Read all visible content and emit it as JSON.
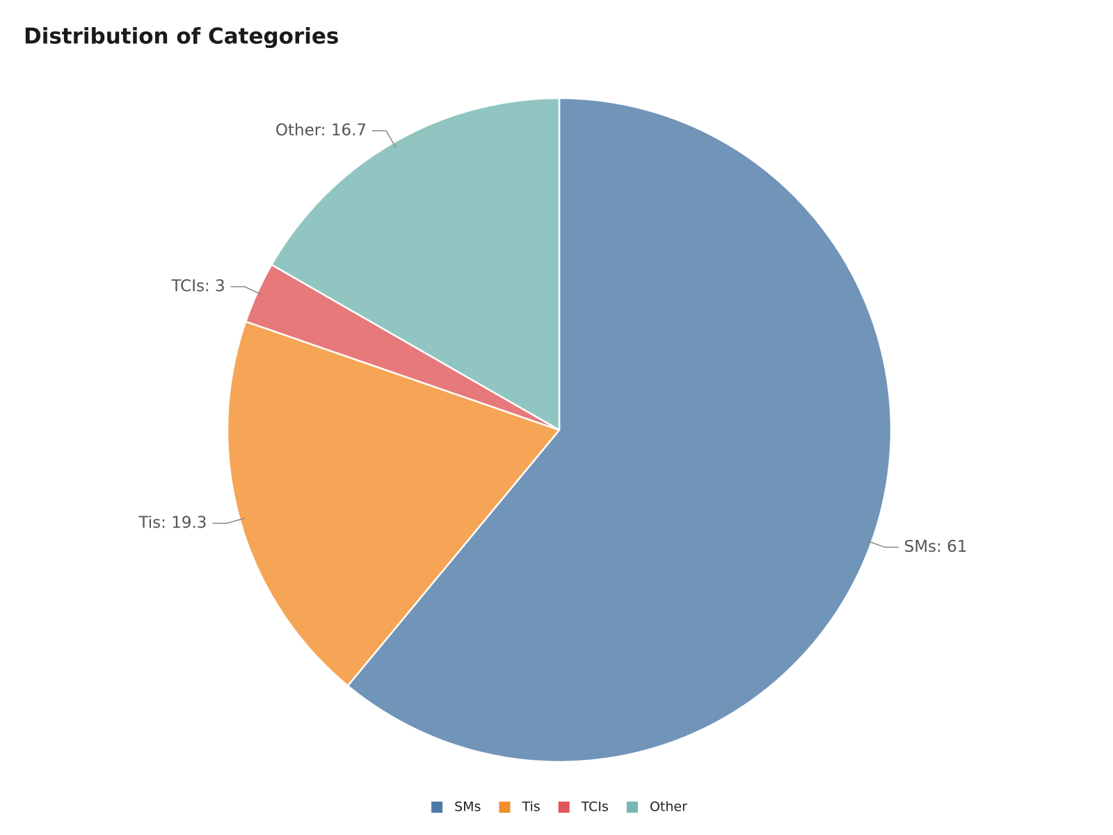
{
  "chart_data": {
    "type": "pie",
    "title": "Distribution of Categories",
    "categories": [
      "SMs",
      "Tis",
      "TCIs",
      "Other"
    ],
    "values": [
      61,
      19.3,
      3,
      16.7
    ],
    "value_labels": [
      "SMs: 61",
      "Tis: 19.3",
      "TCIs: 3",
      "Other: 16.7"
    ],
    "colors": [
      "#4e79a7",
      "#f28e2b",
      "#e15759",
      "#76b7b2"
    ],
    "legend": "bottom"
  }
}
